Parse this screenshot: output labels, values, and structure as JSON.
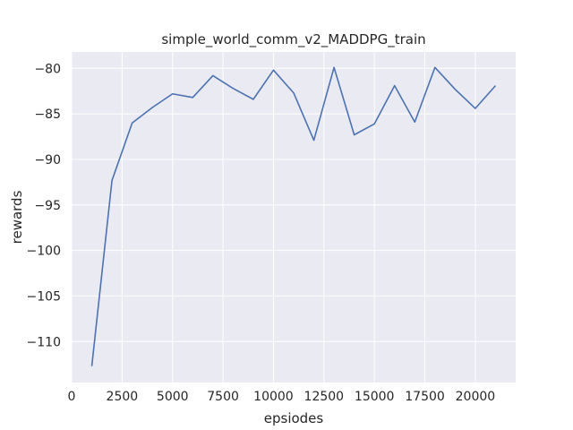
{
  "chart_data": {
    "type": "line",
    "title": "simple_world_comm_v2_MADDPG_train",
    "xlabel": "epsiodes",
    "ylabel": "rewards",
    "xlim": [
      0,
      22000
    ],
    "ylim": [
      -114.5,
      -78.2
    ],
    "xticks": [
      0,
      2500,
      5000,
      7500,
      10000,
      12500,
      15000,
      17500,
      20000
    ],
    "xtick_labels": [
      "0",
      "2500",
      "5000",
      "7500",
      "10000",
      "12500",
      "15000",
      "17500",
      "20000"
    ],
    "yticks": [
      -80,
      -85,
      -90,
      -95,
      -100,
      -105,
      -110
    ],
    "ytick_labels": [
      "−80",
      "−85",
      "−90",
      "−95",
      "−100",
      "−105",
      "−110"
    ],
    "grid": true,
    "series": [
      {
        "name": "rewards",
        "color": "#4c72b0",
        "x": [
          1000,
          2000,
          3000,
          4000,
          5000,
          6000,
          7000,
          8000,
          9000,
          10000,
          11000,
          12000,
          13000,
          14000,
          15000,
          16000,
          17000,
          18000,
          19000,
          20000,
          21000
        ],
        "y": [
          -112.7,
          -92.3,
          -86.0,
          -84.3,
          -82.8,
          -83.2,
          -80.8,
          -82.2,
          -83.4,
          -80.2,
          -82.7,
          -87.9,
          -79.9,
          -87.3,
          -86.1,
          -81.9,
          -85.9,
          -79.9,
          -82.3,
          -84.4,
          -81.9
        ]
      }
    ]
  },
  "colors": {
    "plot_background": "#eaeaf2",
    "grid": "#ffffff",
    "text": "#262626",
    "line": "#4c72b0"
  }
}
